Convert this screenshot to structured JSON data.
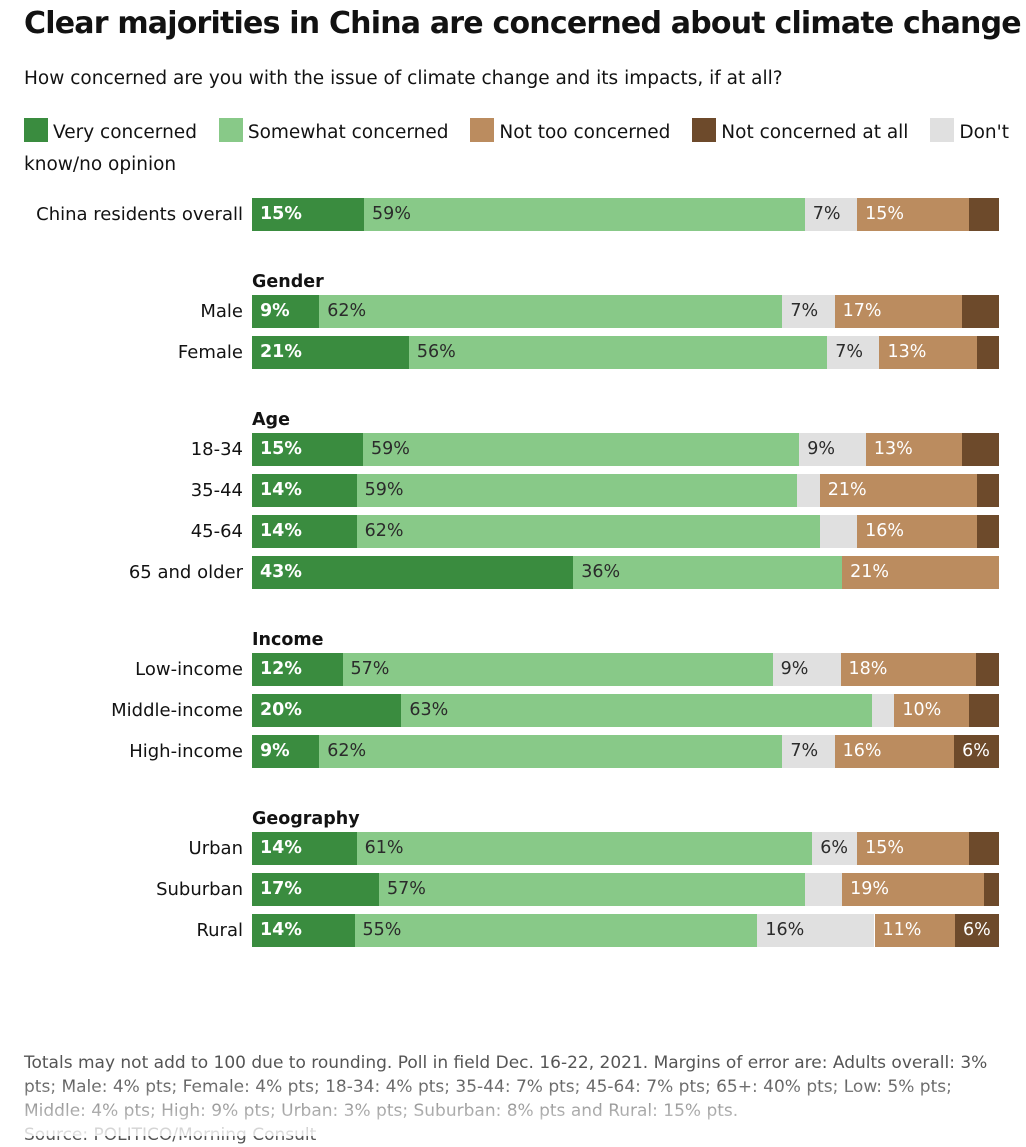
{
  "title": "Clear majorities in China are concerned about climate change",
  "subtitle": "How concerned are you with the issue of climate change and its impacts, if at all?",
  "footnote": "Totals may not add to 100 due to rounding. Poll in field Dec. 16-22, 2021. Margins of error are: Adults overall: 3% pts; Male: 4% pts; Female: 4% pts; 18-34: 4% pts; 35-44: 7% pts; 45-64: 7% pts; 65+: 40% pts; Low: 5% pts; Middle: 4% pts; High: 9% pts; Urban: 3% pts; Suburban: 8% pts and Rural: 15% pts.",
  "source": "Source: POLITICO/Morning Consult",
  "chart_data": {
    "type": "bar",
    "orientation": "horizontal",
    "stacked": true,
    "title": "Clear majorities in China are concerned about climate change",
    "subtitle": "How concerned are you with the issue of climate change and its impacts, if at all?",
    "legend_position": "top",
    "series": [
      {
        "name": "Very concerned",
        "color": "#3a8c3f"
      },
      {
        "name": "Somewhat concerned",
        "color": "#88c988"
      },
      {
        "name": "Don't know/no opinion",
        "color": "#e0e0e0"
      },
      {
        "name": "Not too concerned",
        "color": "#bb8c5f"
      },
      {
        "name": "Not concerned at all",
        "color": "#6d4a2b"
      }
    ],
    "legend_order": [
      0,
      1,
      3,
      4,
      2
    ],
    "groups": [
      {
        "label": "",
        "rows": [
          {
            "label": "China residents overall",
            "values": [
              15,
              59,
              7,
              15,
              4
            ],
            "labels": [
              "15%",
              "59%",
              "7%",
              "15%",
              ""
            ]
          }
        ]
      },
      {
        "label": "Gender",
        "rows": [
          {
            "label": "Male",
            "values": [
              9,
              62,
              7,
              17,
              5
            ],
            "labels": [
              "9%",
              "62%",
              "7%",
              "17%",
              ""
            ]
          },
          {
            "label": "Female",
            "values": [
              21,
              56,
              7,
              13,
              3
            ],
            "labels": [
              "21%",
              "56%",
              "7%",
              "13%",
              ""
            ]
          }
        ]
      },
      {
        "label": "Age",
        "rows": [
          {
            "label": "18-34",
            "values": [
              15,
              59,
              9,
              13,
              5
            ],
            "labels": [
              "15%",
              "59%",
              "9%",
              "13%",
              ""
            ]
          },
          {
            "label": "35-44",
            "values": [
              14,
              59,
              3,
              21,
              3
            ],
            "labels": [
              "14%",
              "59%",
              "",
              "21%",
              ""
            ]
          },
          {
            "label": "45-64",
            "values": [
              14,
              62,
              5,
              16,
              3
            ],
            "labels": [
              "14%",
              "62%",
              "",
              "16%",
              ""
            ]
          },
          {
            "label": "65 and older",
            "values": [
              43,
              36,
              0,
              21,
              0
            ],
            "labels": [
              "43%",
              "36%",
              "",
              "21%",
              ""
            ]
          }
        ]
      },
      {
        "label": "Income",
        "rows": [
          {
            "label": "Low-income",
            "values": [
              12,
              57,
              9,
              18,
              3
            ],
            "labels": [
              "12%",
              "57%",
              "9%",
              "18%",
              ""
            ]
          },
          {
            "label": "Middle-income",
            "values": [
              20,
              63,
              3,
              10,
              4
            ],
            "labels": [
              "20%",
              "63%",
              "",
              "10%",
              ""
            ]
          },
          {
            "label": "High-income",
            "values": [
              9,
              62,
              7,
              16,
              6
            ],
            "labels": [
              "9%",
              "62%",
              "7%",
              "16%",
              "6%"
            ]
          }
        ]
      },
      {
        "label": "Geography",
        "rows": [
          {
            "label": "Urban",
            "values": [
              14,
              61,
              6,
              15,
              4
            ],
            "labels": [
              "14%",
              "61%",
              "6%",
              "15%",
              ""
            ]
          },
          {
            "label": "Suburban",
            "values": [
              17,
              57,
              5,
              19,
              2
            ],
            "labels": [
              "17%",
              "57%",
              "",
              "19%",
              ""
            ]
          },
          {
            "label": "Rural",
            "values": [
              14,
              55,
              16,
              11,
              6
            ],
            "labels": [
              "14%",
              "55%",
              "16%",
              "11%",
              "6%"
            ]
          }
        ]
      }
    ]
  }
}
